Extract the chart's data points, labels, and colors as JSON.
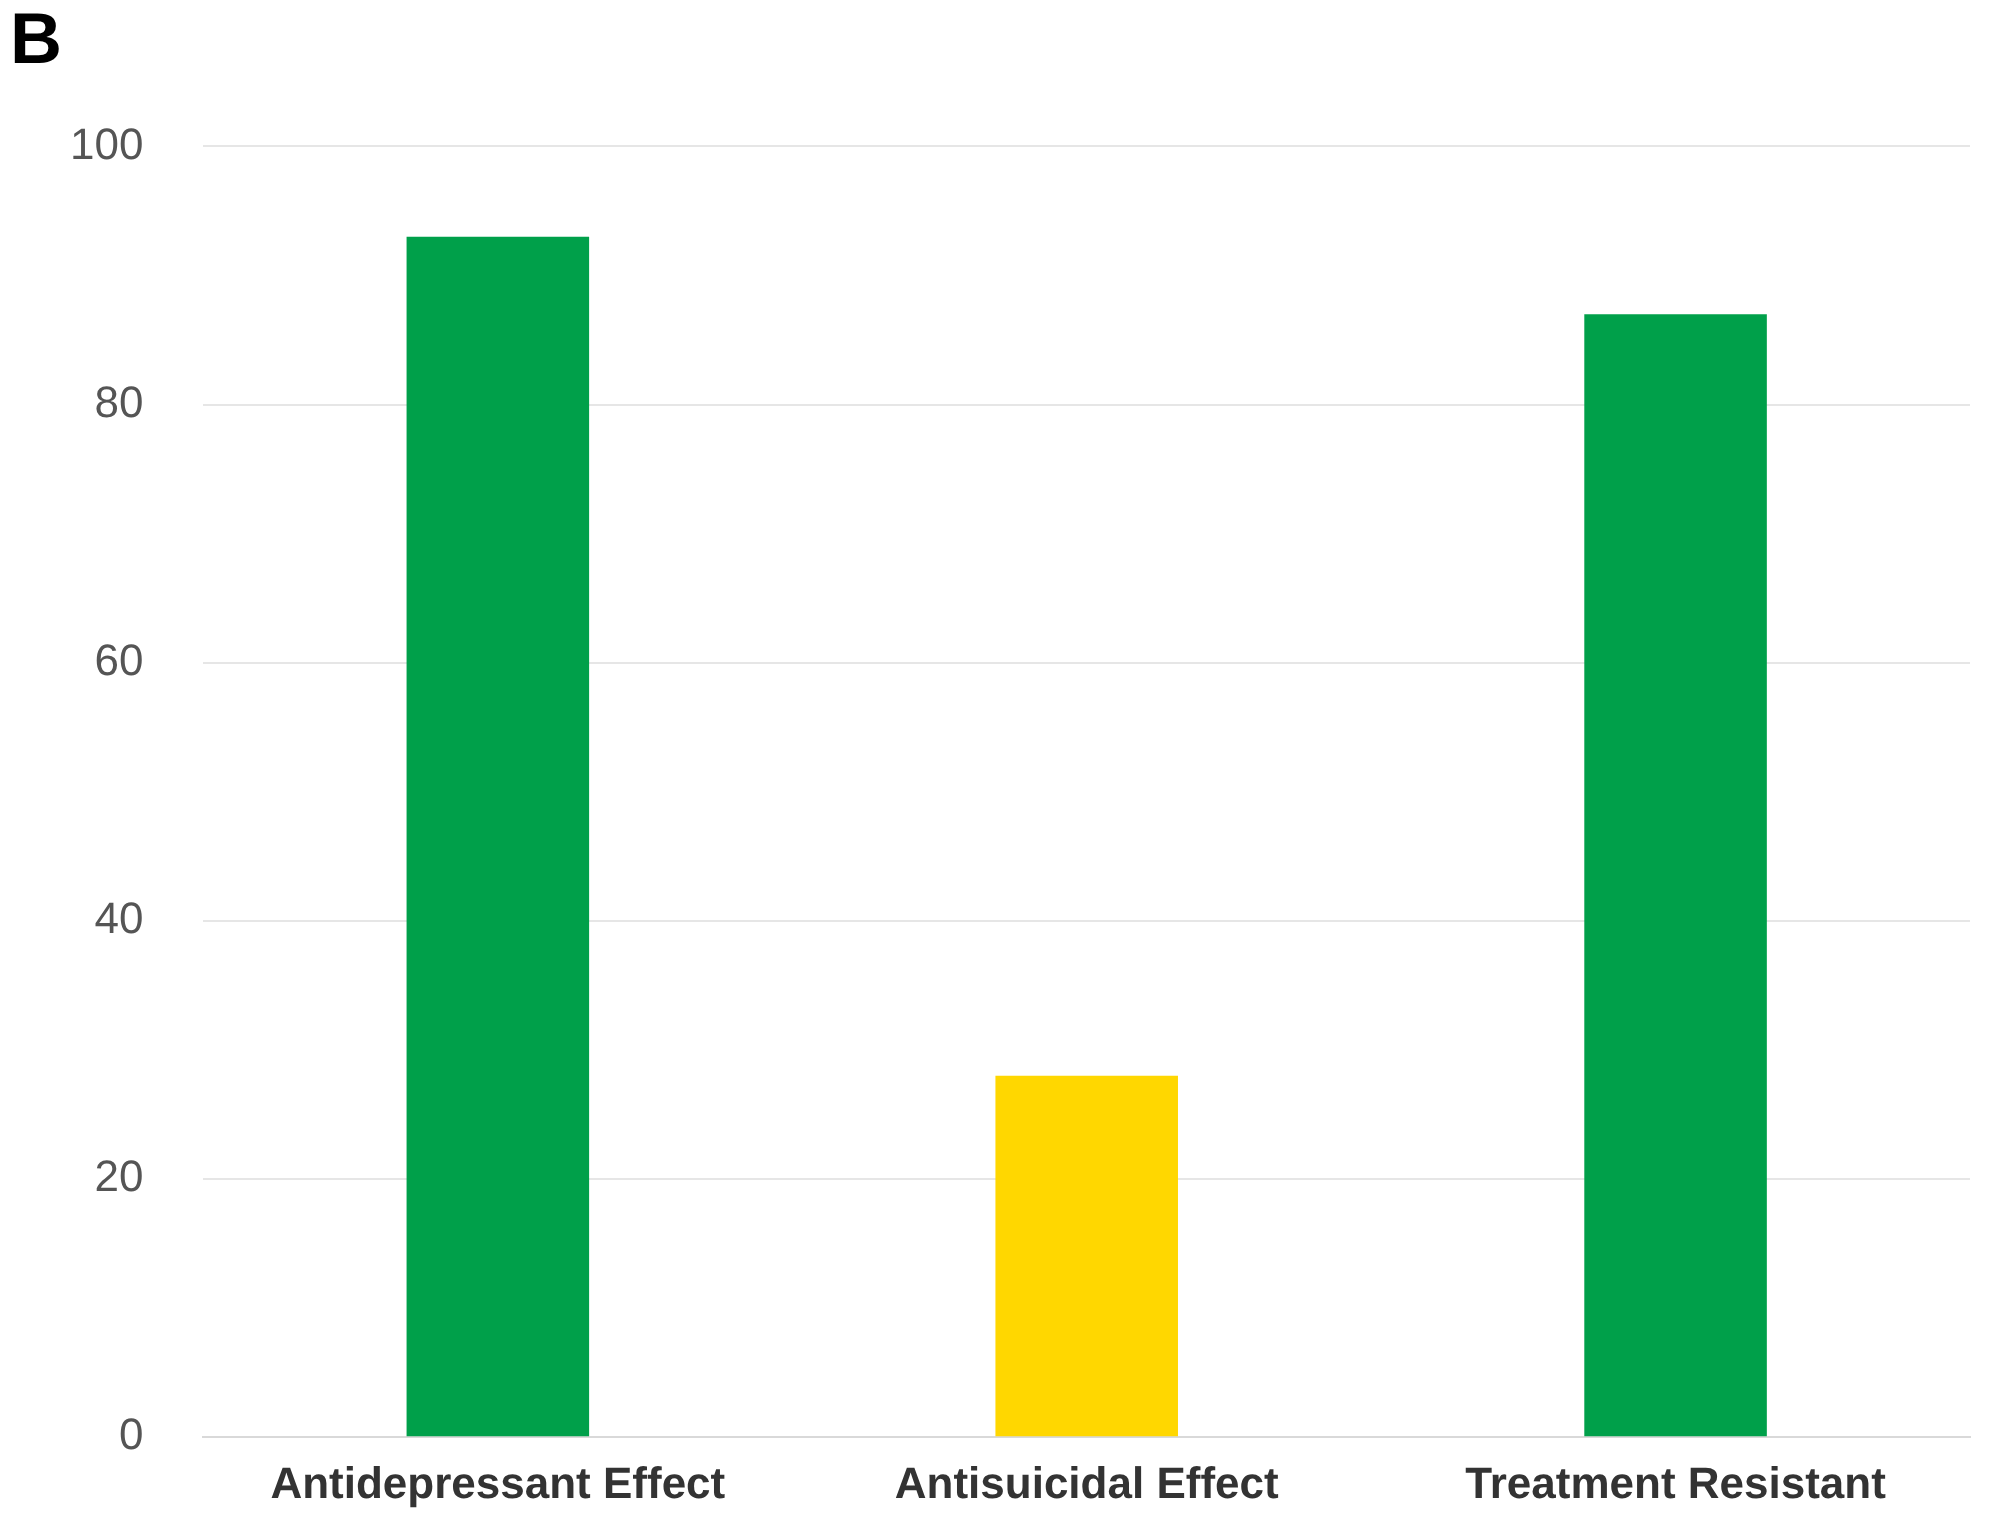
{
  "chart_data": {
    "type": "bar",
    "title": "B",
    "categories": [
      "Antidepressant Effect",
      "Antisuicidal Effect",
      "Treatment Resistant"
    ],
    "values": [
      93,
      28,
      87
    ],
    "colors": [
      "#00a04a",
      "#ffd700",
      "#00a04a"
    ],
    "ylim": [
      0,
      100
    ],
    "yticks": [
      0,
      20,
      40,
      60,
      80,
      100
    ],
    "grid": "y",
    "legend": false
  }
}
